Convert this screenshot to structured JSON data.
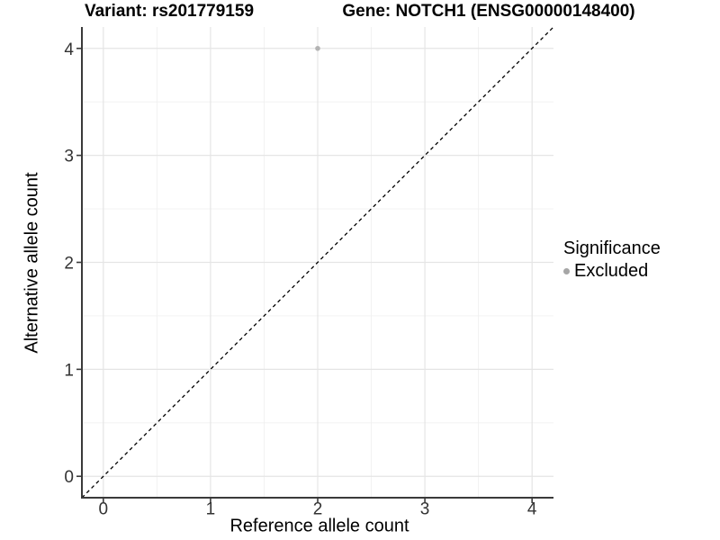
{
  "chart_data": {
    "type": "scatter",
    "title_left": "Variant: rs201779159",
    "title_right": "Gene: NOTCH1 (ENSG00000148400)",
    "xlabel": "Reference allele count",
    "ylabel": "Alternative allele count",
    "xlim": [
      -0.2,
      4.2
    ],
    "ylim": [
      -0.2,
      4.2
    ],
    "xticks": [
      0,
      1,
      2,
      3,
      4
    ],
    "yticks": [
      0,
      1,
      2,
      3,
      4
    ],
    "grid": "major+minor",
    "identity_line": {
      "slope": 1,
      "intercept": 0,
      "style": "dashed",
      "color": "#000000"
    },
    "series": [
      {
        "name": "Excluded",
        "color": "#b3b3b3",
        "points": [
          {
            "x": 2,
            "y": 4
          }
        ]
      }
    ],
    "legend": {
      "title": "Significance",
      "position": "right",
      "items": [
        {
          "label": "Excluded",
          "color": "#a6a6a6"
        }
      ]
    },
    "colors": {
      "background": "#ffffff",
      "grid_major": "#e5e5e5",
      "grid_minor": "#f0f0f0",
      "axis_line": "#3a3a3a",
      "tick_text": "#333333"
    }
  }
}
